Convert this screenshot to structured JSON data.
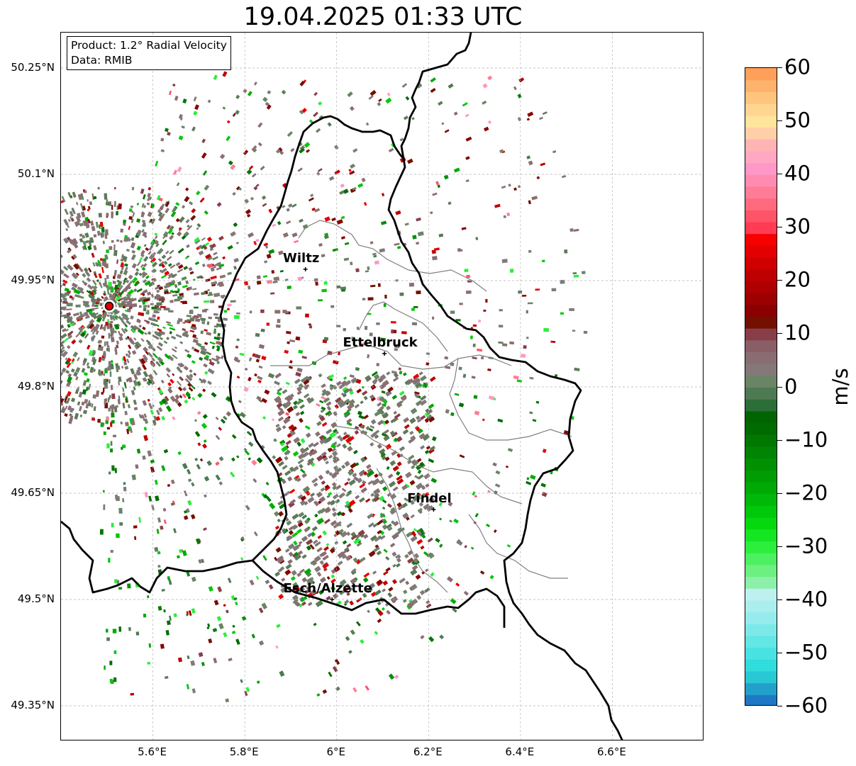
{
  "title": "19.04.2025 01:33 UTC",
  "info_box": {
    "line1": "Product: 1.2° Radial Velocity",
    "line2": "Data: RMIB"
  },
  "map": {
    "extent": {
      "lon_min": 5.4,
      "lon_max": 6.8,
      "lat_min": 49.3,
      "lat_max": 50.3
    },
    "lat_ticks": [
      {
        "value": 50.25,
        "label": "50.25°N"
      },
      {
        "value": 50.1,
        "label": "50.1°N"
      },
      {
        "value": 49.95,
        "label": "49.95°N"
      },
      {
        "value": 49.8,
        "label": "49.8°N"
      },
      {
        "value": 49.65,
        "label": "49.65°N"
      },
      {
        "value": 49.5,
        "label": "49.5°N"
      },
      {
        "value": 49.35,
        "label": "49.35°N"
      }
    ],
    "lon_ticks": [
      {
        "value": 5.6,
        "label": "5.6°E"
      },
      {
        "value": 5.8,
        "label": "5.8°E"
      },
      {
        "value": 6.0,
        "label": "6°E"
      },
      {
        "value": 6.2,
        "label": "6.2°E"
      },
      {
        "value": 6.4,
        "label": "6.4°E"
      },
      {
        "value": 6.6,
        "label": "6.6°E"
      }
    ],
    "gridlines": true,
    "radar_site": {
      "lon": 5.505,
      "lat": 49.914,
      "color": "#e00000"
    },
    "cities": [
      {
        "name": "Wiltz",
        "lon": 5.932,
        "lat": 49.966
      },
      {
        "name": "Ettelbruck",
        "lon": 6.104,
        "lat": 49.847
      },
      {
        "name": "Findel",
        "lon": 6.211,
        "lat": 49.627
      },
      {
        "name": "Esch/Alzette",
        "lon": 5.99,
        "lat": 49.5
      }
    ],
    "border_color": "#000000",
    "district_color": "#808080"
  },
  "colorbar": {
    "unit": "m/s",
    "min": -60,
    "max": 60,
    "ticks": [
      {
        "value": 60,
        "label": "60"
      },
      {
        "value": 50,
        "label": "50"
      },
      {
        "value": 40,
        "label": "40"
      },
      {
        "value": 30,
        "label": "30"
      },
      {
        "value": 20,
        "label": "20"
      },
      {
        "value": 10,
        "label": "10"
      },
      {
        "value": 0,
        "label": "0"
      },
      {
        "value": -10,
        "label": "−10"
      },
      {
        "value": -20,
        "label": "−20"
      },
      {
        "value": -30,
        "label": "−30"
      },
      {
        "value": -40,
        "label": "−40"
      },
      {
        "value": -50,
        "label": "−50"
      },
      {
        "value": -60,
        "label": "−60"
      }
    ],
    "colors": [
      "#1f78c4",
      "#22a0cc",
      "#28c8d4",
      "#30dcdc",
      "#48e2e2",
      "#62e6e6",
      "#7ce9e9",
      "#96ecec",
      "#abeeee",
      "#bff0f0",
      "#8cf0a8",
      "#6cf080",
      "#4cf060",
      "#2cee3c",
      "#14e622",
      "#06d810",
      "#00c80a",
      "#00b808",
      "#00aa06",
      "#009c04",
      "#009002",
      "#008402",
      "#007800",
      "#006c00",
      "#006400",
      "#2c6e38",
      "#4e7a52",
      "#6a8466",
      "#847878",
      "#8a6c74",
      "#8a5e66",
      "#883e48",
      "#741000",
      "#8a0000",
      "#9c0000",
      "#ae0000",
      "#be0000",
      "#d00000",
      "#e40000",
      "#f60000",
      "#ff3c54",
      "#ff5468",
      "#ff6a7e",
      "#ff7c96",
      "#ff8cb0",
      "#ff98c6",
      "#ffa8c4",
      "#ffb4b4",
      "#ffd0a8",
      "#ffe49c",
      "#ffd590",
      "#ffc47e",
      "#ffb26c",
      "#ffa05a"
    ]
  }
}
